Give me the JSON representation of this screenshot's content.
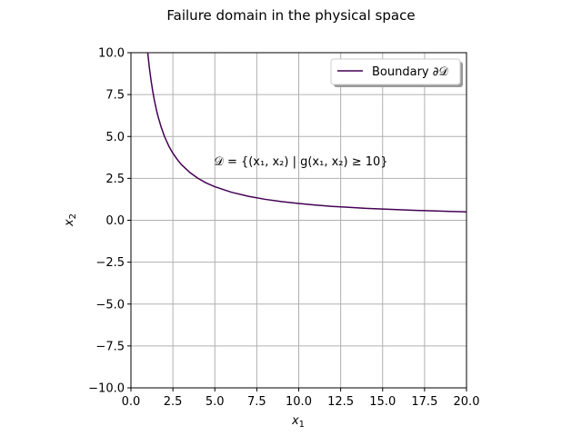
{
  "chart_data": {
    "type": "line",
    "title": "Failure domain in the physical space",
    "xlabel": {
      "base": "x",
      "sub": "1"
    },
    "ylabel": {
      "base": "x",
      "sub": "2"
    },
    "xlim": [
      0.0,
      20.0
    ],
    "ylim": [
      -10.0,
      10.0
    ],
    "xticks": [
      "0.0",
      "2.5",
      "5.0",
      "7.5",
      "10.0",
      "12.5",
      "15.0",
      "17.5",
      "20.0"
    ],
    "yticks": [
      "−10.0",
      "−7.5",
      "−5.0",
      "−2.5",
      "0.0",
      "2.5",
      "5.0",
      "7.5",
      "10.0"
    ],
    "grid": true,
    "legend_position": "top-right",
    "annotation": "𝒟 = {(x₁, x₂) | g(x₁, x₂) ≥ 10}",
    "series": [
      {
        "name": "Boundary ∂𝒟",
        "color": "#440154",
        "points": [
          [
            1.0,
            10.0
          ],
          [
            1.1,
            9.09
          ],
          [
            1.2,
            8.33
          ],
          [
            1.3,
            7.69
          ],
          [
            1.4,
            7.14
          ],
          [
            1.5,
            6.67
          ],
          [
            1.6,
            6.25
          ],
          [
            1.8,
            5.56
          ],
          [
            2.0,
            5.0
          ],
          [
            2.25,
            4.44
          ],
          [
            2.5,
            4.0
          ],
          [
            2.75,
            3.64
          ],
          [
            3.0,
            3.33
          ],
          [
            3.5,
            2.86
          ],
          [
            4.0,
            2.5
          ],
          [
            4.5,
            2.22
          ],
          [
            5.0,
            2.0
          ],
          [
            6.0,
            1.67
          ],
          [
            7.0,
            1.43
          ],
          [
            8.0,
            1.25
          ],
          [
            9.0,
            1.11
          ],
          [
            10.0,
            1.0
          ],
          [
            11.0,
            0.91
          ],
          [
            12.0,
            0.83
          ],
          [
            13.0,
            0.77
          ],
          [
            14.0,
            0.71
          ],
          [
            15.0,
            0.67
          ],
          [
            16.0,
            0.63
          ],
          [
            17.0,
            0.59
          ],
          [
            18.0,
            0.56
          ],
          [
            19.0,
            0.53
          ],
          [
            20.0,
            0.5
          ]
        ]
      }
    ]
  }
}
